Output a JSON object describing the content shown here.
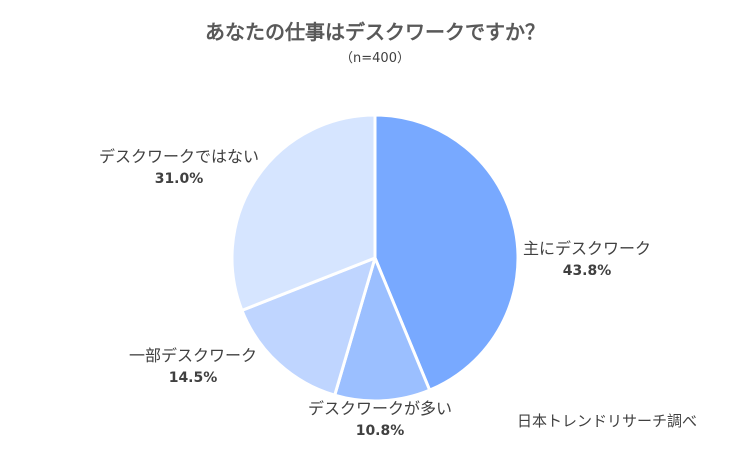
{
  "chart_data": {
    "type": "pie",
    "title": "あなたの仕事はデスクワークですか？",
    "subtitle": "（n=400）",
    "slices": [
      {
        "label": "主にデスクワーク",
        "value": 43.8,
        "value_label": "43.8%",
        "color": "#78A9FF"
      },
      {
        "label": "デスクワークが多い",
        "value": 10.8,
        "value_label": "10.8%",
        "color": "#9BBFFF"
      },
      {
        "label": "一部デスクワーク",
        "value": 14.5,
        "value_label": "14.5%",
        "color": "#BFD5FF"
      },
      {
        "label": "デスクワークではない",
        "value": 31.0,
        "value_label": "31.0%",
        "color": "#D6E5FF"
      }
    ],
    "start_angle_deg": 0,
    "direction": "clockwise",
    "legend": "none"
  },
  "source_note": "日本トレンドリサーチ調べ"
}
